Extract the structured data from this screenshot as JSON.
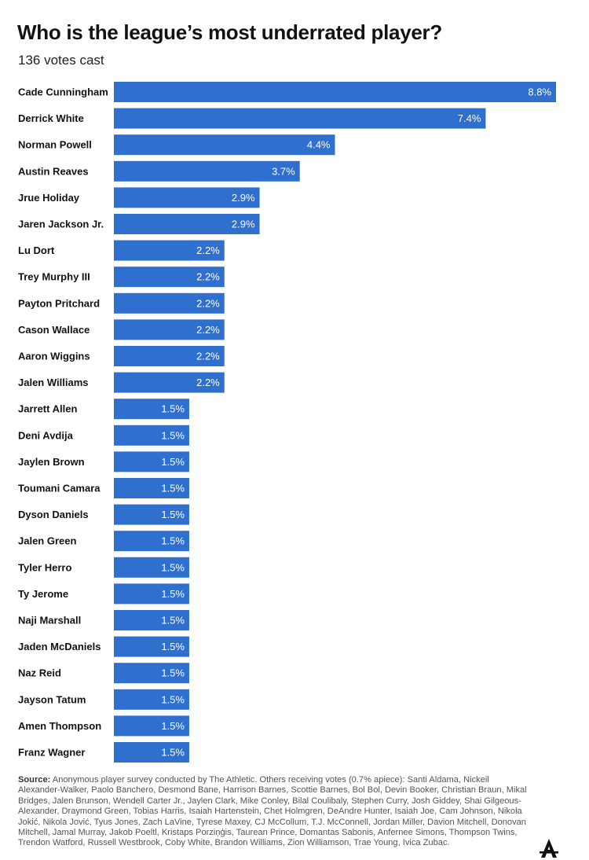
{
  "header": {
    "title": "Who is the league’s most underrated player?",
    "subtitle": "136 votes cast"
  },
  "chart_data": {
    "type": "bar",
    "orientation": "horizontal",
    "title": "Who is the league’s most underrated player?",
    "subtitle": "136 votes cast",
    "value_format": "percent",
    "bar_color": "#2f6fce",
    "label_color": "#ffffff",
    "categories": [
      "Cade Cunningham",
      "Derrick White",
      "Norman Powell",
      "Austin Reaves",
      "Jrue Holiday",
      "Jaren Jackson Jr.",
      "Lu Dort",
      "Trey Murphy III",
      "Payton Pritchard",
      "Cason Wallace",
      "Aaron Wiggins",
      "Jalen Williams",
      "Jarrett Allen",
      "Deni Avdija",
      "Jaylen Brown",
      "Toumani Camara",
      "Dyson Daniels",
      "Jalen Green",
      "Tyler Herro",
      "Ty Jerome",
      "Naji Marshall",
      "Jaden McDaniels",
      "Naz Reid",
      "Jayson Tatum",
      "Amen Thompson",
      "Franz Wagner"
    ],
    "values": [
      8.8,
      7.4,
      4.4,
      3.7,
      2.9,
      2.9,
      2.2,
      2.2,
      2.2,
      2.2,
      2.2,
      2.2,
      1.5,
      1.5,
      1.5,
      1.5,
      1.5,
      1.5,
      1.5,
      1.5,
      1.5,
      1.5,
      1.5,
      1.5,
      1.5,
      1.5
    ],
    "value_labels": [
      "8.8%",
      "7.4%",
      "4.4%",
      "3.7%",
      "2.9%",
      "2.9%",
      "2.2%",
      "2.2%",
      "2.2%",
      "2.2%",
      "2.2%",
      "2.2%",
      "1.5%",
      "1.5%",
      "1.5%",
      "1.5%",
      "1.5%",
      "1.5%",
      "1.5%",
      "1.5%",
      "1.5%",
      "1.5%",
      "1.5%",
      "1.5%",
      "1.5%",
      "1.5%"
    ],
    "xlim": [
      0,
      8.8
    ],
    "grid": false,
    "legend": "none"
  },
  "footer": {
    "source_label": "Source:",
    "source_text": "Anonymous player survey conducted by The Athletic. Others receiving votes (0.7% apiece): Santi Aldama, Nickeil Alexander-Walker, Paolo Banchero, Desmond Bane, Harrison Barnes, Scottie Barnes, Bol Bol, Devin Booker, Christian Braun, Mikal Bridges, Jalen Brunson, Wendell Carter Jr., Jaylen Clark, Mike Conley, Bilal Coulibaly, Stephen Curry, Josh Giddey, Shai Gilgeous-Alexander, Draymond Green, Tobias Harris, Isaiah Hartenstein, Chet Holmgren, DeAndre Hunter, Isaiah Joe, Cam Johnson, Nikola Jokić, Nikola Jović, Tyus Jones, Zach LaVine, Tyrese Maxey, CJ McCollum, T.J. McConnell, Jordan Miller, Davion Mitchell, Donovan Mitchell, Jamal Murray, Jakob Poeltl, Kristaps Porziņģis, Taurean Prince, Domantas Sabonis, Anfernee Simons, Thompson Twins, Trendon Watford, Russell Westbrook, Coby White, Brandon Williams, Zion Williamson, Trae Young, Ivica Zubac."
  },
  "logo": {
    "text": "The Athletic",
    "icon": "athletic-logo-icon"
  }
}
